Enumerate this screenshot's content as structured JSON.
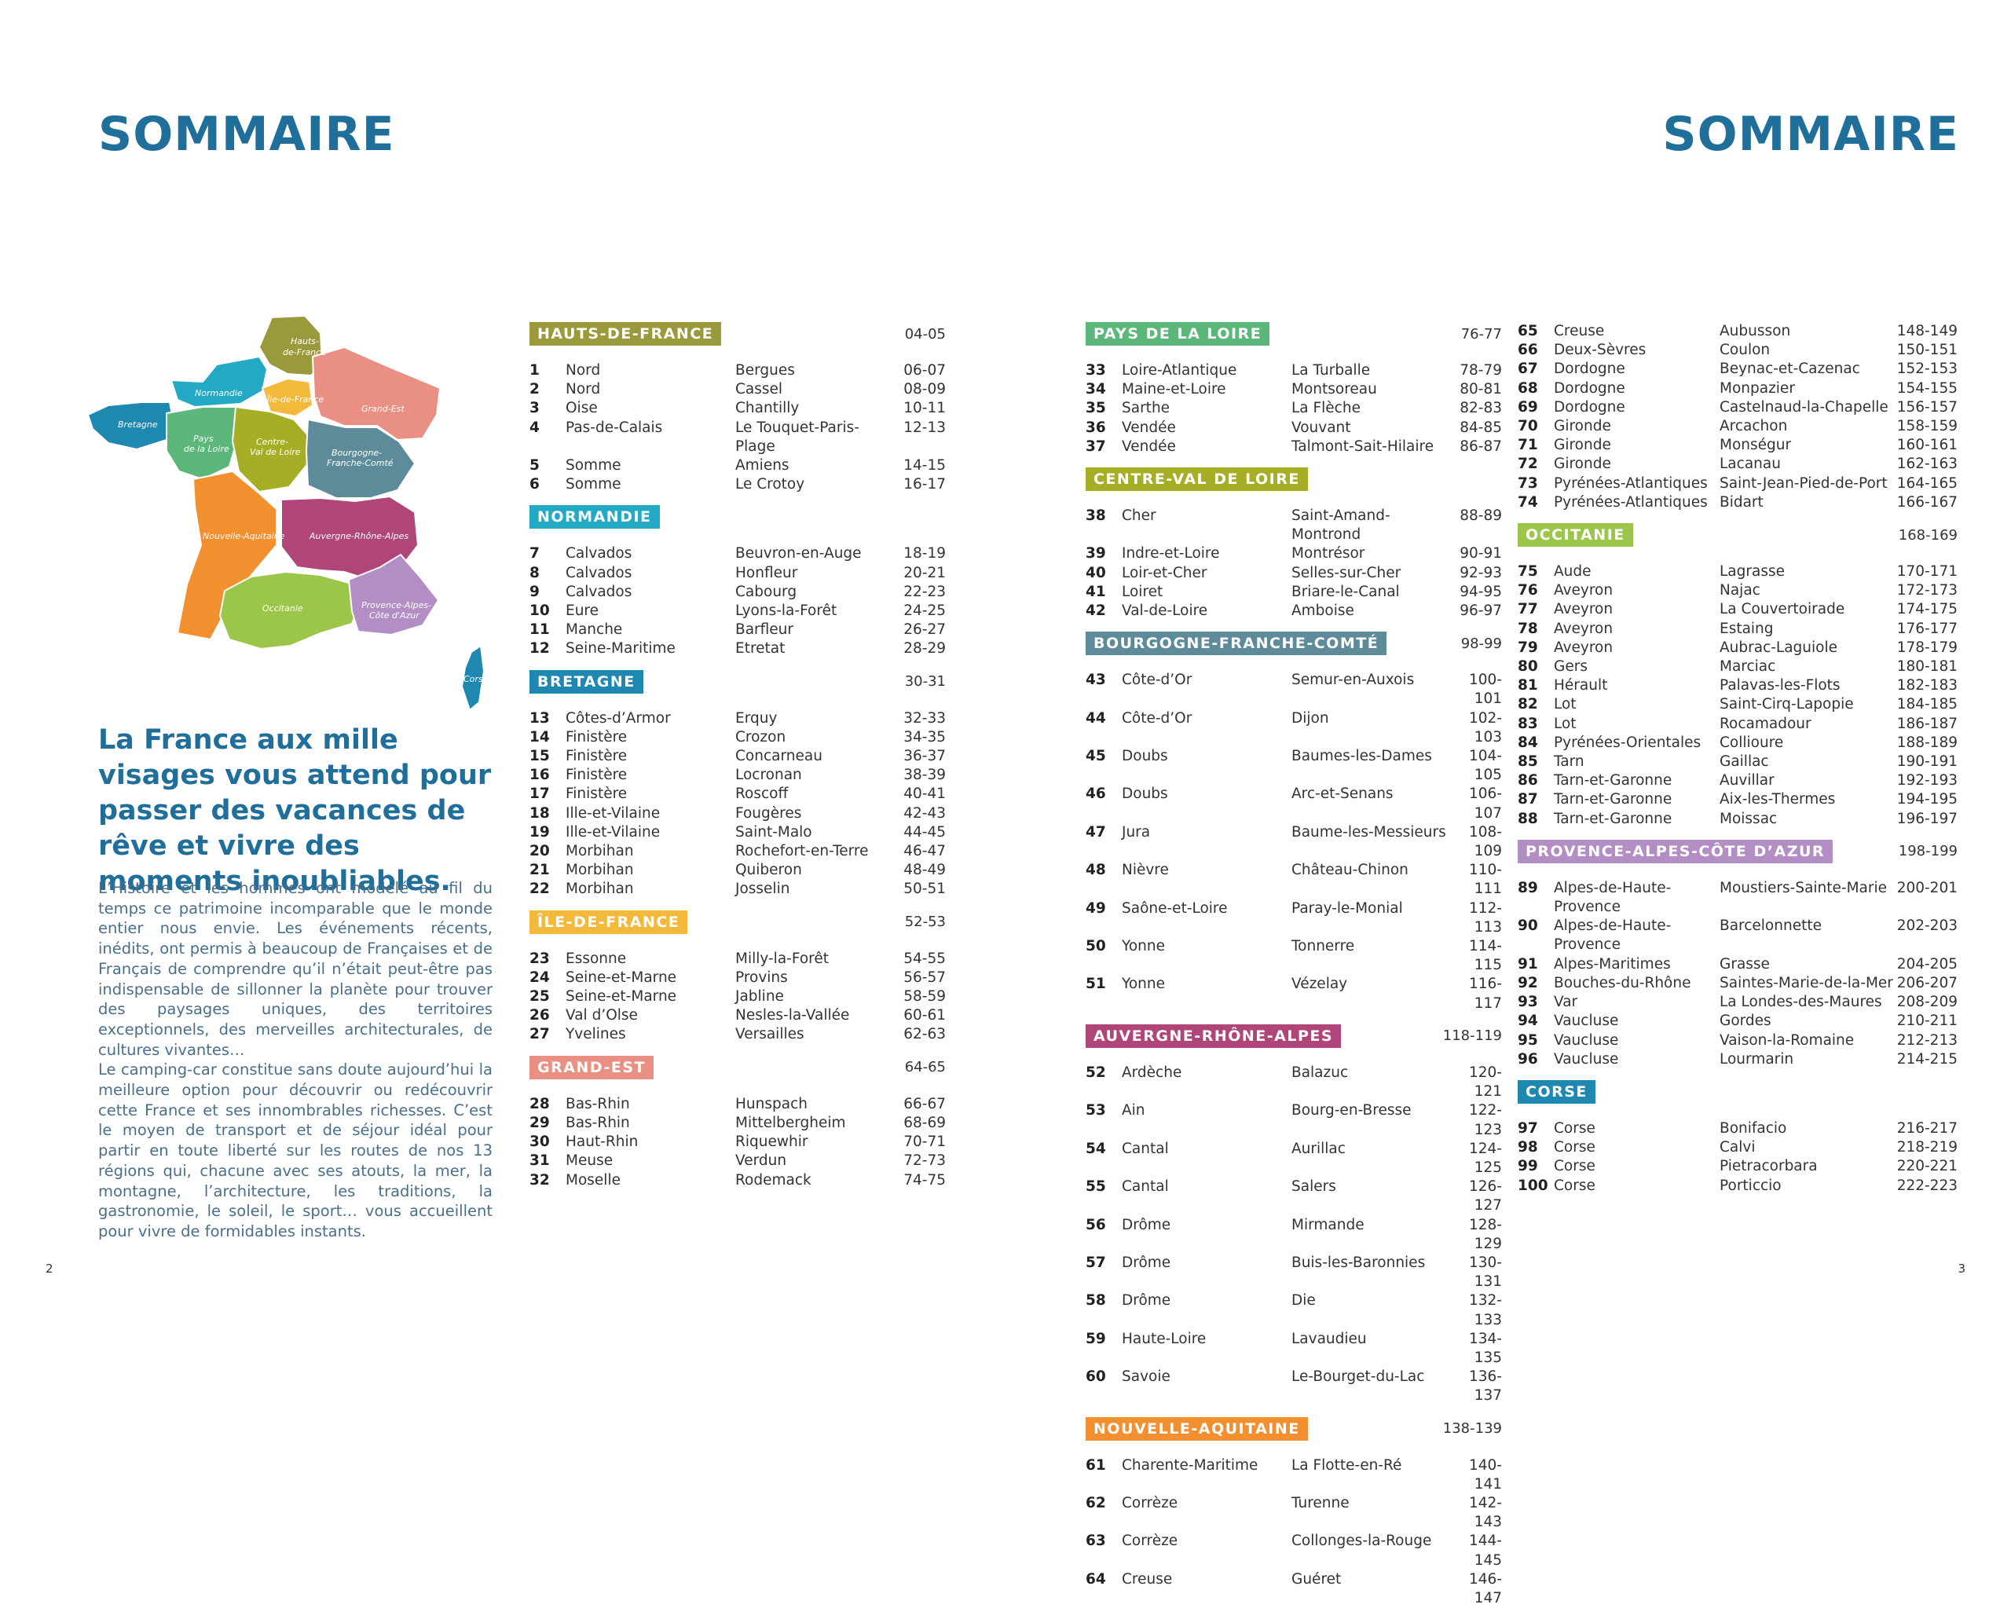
{
  "header": {
    "title_left": "SOMMAIRE",
    "title_right": "SOMMAIRE"
  },
  "map": {
    "regions": [
      {
        "name": "Hauts-de-France",
        "line1": "Hauts-",
        "line2": "de-France",
        "color": "#9a9a3c"
      },
      {
        "name": "Normandie",
        "line1": "Normandie",
        "line2": "",
        "color": "#24a9c4"
      },
      {
        "name": "Île-de-France",
        "line1": "Île-de-France",
        "line2": "",
        "color": "#f2b93b"
      },
      {
        "name": "Grand-Est",
        "line1": "Grand-Est",
        "line2": "",
        "color": "#ea8f83"
      },
      {
        "name": "Bretagne",
        "line1": "Bretagne",
        "line2": "",
        "color": "#1e88b0"
      },
      {
        "name": "Pays de la Loire",
        "line1": "Pays",
        "line2": "de la Loire",
        "color": "#5cb87a"
      },
      {
        "name": "Centre-Val de Loire",
        "line1": "Centre-",
        "line2": "Val de Loire",
        "color": "#a6ae26"
      },
      {
        "name": "Bourgogne-Franche-Comté",
        "line1": "Bourgogne-",
        "line2": "Franche-Comté",
        "color": "#5d8b9a"
      },
      {
        "name": "Nouvelle-Aquitaine",
        "line1": "Nouvelle-Aquitaine",
        "line2": "",
        "color": "#f28f2e"
      },
      {
        "name": "Auvergne-Rhône-Alpes",
        "line1": "Auvergne-Rhône-Alpes",
        "line2": "",
        "color": "#b0457a"
      },
      {
        "name": "Occitanie",
        "line1": "Occitanie",
        "line2": "",
        "color": "#9cc64a"
      },
      {
        "name": "Provence-Alpes-Côte d'Azur",
        "line1": "Provence-Alpes-",
        "line2": "Côte d'Azur",
        "color": "#b28ec4"
      },
      {
        "name": "Corse",
        "line1": "Corse",
        "line2": "",
        "color": "#1e88b0"
      }
    ]
  },
  "headline": "La France aux mille visages vous attend pour passer des vacances de rêve et vivre des moments inoubliables.",
  "intro": {
    "p1": "L’Histoire et les hommes ont modelé au fil du temps ce patrimoine incomparable que le monde entier nous envie. Les événements récents, inédits, ont permis à beaucoup de Françaises et de Français de comprendre qu’il n’était peut-être pas indispensable de sillonner la planète pour trouver des paysages uniques, des territoires exceptionnels, des merveilles architecturales, de cultures vivantes…",
    "p2": "Le camping-car constitue sans doute aujourd’hui la meilleure option pour découvrir ou redécouvrir cette France et ses innombrables richesses. C’est le moyen de transport et de séjour idéal pour partir en toute liberté sur les routes de nos 13 régions qui, chacune avec ses atouts, la mer, la montagne, l’architecture, les traditions, la gastronomie, le soleil, le sport… vous accueillent pour vivre de formidables instants."
  },
  "columns": [
    [
      {
        "title": "HAUTS-DE-FRANCE",
        "pages": "04-05",
        "color": "#9a9a3c",
        "entries": [
          {
            "n": "1",
            "d": "Nord",
            "t": "Bergues",
            "p": "06-07"
          },
          {
            "n": "2",
            "d": "Nord",
            "t": "Cassel",
            "p": "08-09"
          },
          {
            "n": "3",
            "d": "Oise",
            "t": "Chantilly",
            "p": "10-11"
          },
          {
            "n": "4",
            "d": "Pas-de-Calais",
            "t": "Le Touquet-Paris-Plage",
            "p": "12-13"
          },
          {
            "n": "5",
            "d": "Somme",
            "t": "Amiens",
            "p": "14-15"
          },
          {
            "n": "6",
            "d": "Somme",
            "t": "Le Crotoy",
            "p": "16-17"
          }
        ]
      },
      {
        "title": "NORMANDIE",
        "pages": "",
        "color": "#24a9c4",
        "entries": [
          {
            "n": "7",
            "d": "Calvados",
            "t": "Beuvron-en-Auge",
            "p": "18-19"
          },
          {
            "n": "8",
            "d": "Calvados",
            "t": "Honfleur",
            "p": "20-21"
          },
          {
            "n": "9",
            "d": "Calvados",
            "t": "Cabourg",
            "p": "22-23"
          },
          {
            "n": "10",
            "d": "Eure",
            "t": "Lyons-la-Forêt",
            "p": "24-25"
          },
          {
            "n": "11",
            "d": "Manche",
            "t": "Barfleur",
            "p": "26-27"
          },
          {
            "n": "12",
            "d": "Seine-Maritime",
            "t": "Etretat",
            "p": "28-29"
          }
        ]
      },
      {
        "title": "BRETAGNE",
        "pages": "30-31",
        "color": "#1e88b0",
        "entries": [
          {
            "n": "13",
            "d": "Côtes-d’Armor",
            "t": "Erquy",
            "p": "32-33"
          },
          {
            "n": "14",
            "d": "Finistère",
            "t": "Crozon",
            "p": "34-35"
          },
          {
            "n": "15",
            "d": "Finistère",
            "t": "Concarneau",
            "p": "36-37"
          },
          {
            "n": "16",
            "d": "Finistère",
            "t": "Locronan",
            "p": "38-39"
          },
          {
            "n": "17",
            "d": "Finistère",
            "t": "Roscoff",
            "p": "40-41"
          },
          {
            "n": "18",
            "d": "Ille-et-Vilaine",
            "t": "Fougères",
            "p": "42-43"
          },
          {
            "n": "19",
            "d": "Ille-et-Vilaine",
            "t": "Saint-Malo",
            "p": "44-45"
          },
          {
            "n": "20",
            "d": "Morbihan",
            "t": "Rochefort-en-Terre",
            "p": "46-47"
          },
          {
            "n": "21",
            "d": "Morbihan",
            "t": "Quiberon",
            "p": "48-49"
          },
          {
            "n": "22",
            "d": "Morbihan",
            "t": "Josselin",
            "p": "50-51"
          }
        ]
      },
      {
        "title": "ÎLE-DE-FRANCE",
        "pages": "52-53",
        "color": "#f2b93b",
        "entries": [
          {
            "n": "23",
            "d": "Essonne",
            "t": "Milly-la-Forêt",
            "p": "54-55"
          },
          {
            "n": "24",
            "d": "Seine-et-Marne",
            "t": "Provins",
            "p": "56-57"
          },
          {
            "n": "25",
            "d": "Seine-et-Marne",
            "t": "Jabline",
            "p": "58-59"
          },
          {
            "n": "26",
            "d": "Val d’Olse",
            "t": "Nesles-la-Vallée",
            "p": "60-61"
          },
          {
            "n": "27",
            "d": "Yvelines",
            "t": "Versailles",
            "p": "62-63"
          }
        ]
      },
      {
        "title": "GRAND-EST",
        "pages": "64-65",
        "color": "#ea8f83",
        "entries": [
          {
            "n": "28",
            "d": "Bas-Rhin",
            "t": "Hunspach",
            "p": "66-67"
          },
          {
            "n": "29",
            "d": "Bas-Rhin",
            "t": "Mittelbergheim",
            "p": "68-69"
          },
          {
            "n": "30",
            "d": "Haut-Rhin",
            "t": "Riquewhir",
            "p": "70-71"
          },
          {
            "n": "31",
            "d": "Meuse",
            "t": "Verdun",
            "p": "72-73"
          },
          {
            "n": "32",
            "d": "Moselle",
            "t": "Rodemack",
            "p": "74-75"
          }
        ]
      }
    ],
    [
      {
        "title": "PAYS DE LA LOIRE",
        "pages": "76-77",
        "color": "#5cb87a",
        "entries": [
          {
            "n": "33",
            "d": "Loire-Atlantique",
            "t": "La Turballe",
            "p": "78-79"
          },
          {
            "n": "34",
            "d": "Maine-et-Loire",
            "t": "Montsoreau",
            "p": "80-81"
          },
          {
            "n": "35",
            "d": "Sarthe",
            "t": "La Flèche",
            "p": "82-83"
          },
          {
            "n": "36",
            "d": "Vendée",
            "t": "Vouvant",
            "p": "84-85"
          },
          {
            "n": "37",
            "d": "Vendée",
            "t": "Talmont-Sait-Hilaire",
            "p": "86-87"
          }
        ]
      },
      {
        "title": "CENTRE-VAL DE LOIRE",
        "pages": "",
        "color": "#a6ae26",
        "entries": [
          {
            "n": "38",
            "d": "Cher",
            "t": "Saint-Amand-Montrond",
            "p": "88-89"
          },
          {
            "n": "39",
            "d": "Indre-et-Loire",
            "t": "Montrésor",
            "p": "90-91"
          },
          {
            "n": "40",
            "d": "Loir-et-Cher",
            "t": "Selles-sur-Cher",
            "p": "92-93"
          },
          {
            "n": "41",
            "d": "Loiret",
            "t": "Briare-le-Canal",
            "p": "94-95"
          },
          {
            "n": "42",
            "d": "Val-de-Loire",
            "t": "Amboise",
            "p": "96-97"
          }
        ]
      },
      {
        "title": "BOURGOGNE-FRANCHE-COMTÉ",
        "pages": "98-99",
        "color": "#5d8b9a",
        "entries": [
          {
            "n": "43",
            "d": "Côte-d’Or",
            "t": "Semur-en-Auxois",
            "p": "100-101"
          },
          {
            "n": "44",
            "d": "Côte-d’Or",
            "t": "Dijon",
            "p": "102-103"
          },
          {
            "n": "45",
            "d": "Doubs",
            "t": "Baumes-les-Dames",
            "p": "104-105"
          },
          {
            "n": "46",
            "d": "Doubs",
            "t": "Arc-et-Senans",
            "p": "106-107"
          },
          {
            "n": "47",
            "d": "Jura",
            "t": "Baume-les-Messieurs",
            "p": "108-109"
          },
          {
            "n": "48",
            "d": "Nièvre",
            "t": "Château-Chinon",
            "p": "110-111"
          },
          {
            "n": "49",
            "d": "Saône-et-Loire",
            "t": "Paray-le-Monial",
            "p": "112-113"
          },
          {
            "n": "50",
            "d": "Yonne",
            "t": "Tonnerre",
            "p": "114-115"
          },
          {
            "n": "51",
            "d": "Yonne",
            "t": "Vézelay",
            "p": "116-117"
          }
        ]
      },
      {
        "title": "AUVERGNE-RHÔNE-ALPES",
        "pages": "118-119",
        "color": "#b0457a",
        "entries": [
          {
            "n": "52",
            "d": "Ardèche",
            "t": "Balazuc",
            "p": "120-121"
          },
          {
            "n": "53",
            "d": "Ain",
            "t": "Bourg-en-Bresse",
            "p": "122-123"
          },
          {
            "n": "54",
            "d": "Cantal",
            "t": "Aurillac",
            "p": "124-125"
          },
          {
            "n": "55",
            "d": "Cantal",
            "t": "Salers",
            "p": "126-127"
          },
          {
            "n": "56",
            "d": "Drôme",
            "t": "Mirmande",
            "p": "128-129"
          },
          {
            "n": "57",
            "d": "Drôme",
            "t": "Buis-les-Baronnies",
            "p": "130-131"
          },
          {
            "n": "58",
            "d": "Drôme",
            "t": "Die",
            "p": "132-133"
          },
          {
            "n": "59",
            "d": "Haute-Loire",
            "t": "Lavaudieu",
            "p": "134-135"
          },
          {
            "n": "60",
            "d": "Savoie",
            "t": "Le-Bourget-du-Lac",
            "p": "136-137"
          }
        ]
      },
      {
        "title": "NOUVELLE-AQUITAINE",
        "pages": "138-139",
        "color": "#f28f2e",
        "entries": [
          {
            "n": "61",
            "d": "Charente-Maritime",
            "t": "La Flotte-en-Ré",
            "p": "140-141"
          },
          {
            "n": "62",
            "d": "Corrèze",
            "t": "Turenne",
            "p": "142-143"
          },
          {
            "n": "63",
            "d": "Corrèze",
            "t": "Collonges-la-Rouge",
            "p": "144-145"
          },
          {
            "n": "64",
            "d": "Creuse",
            "t": "Guéret",
            "p": "146-147"
          }
        ]
      }
    ],
    [
      {
        "title": "",
        "pages": "",
        "color": "",
        "entries": [
          {
            "n": "65",
            "d": "Creuse",
            "t": "Aubusson",
            "p": "148-149"
          },
          {
            "n": "66",
            "d": "Deux-Sèvres",
            "t": "Coulon",
            "p": "150-151"
          },
          {
            "n": "67",
            "d": "Dordogne",
            "t": "Beynac-et-Cazenac",
            "p": "152-153"
          },
          {
            "n": "68",
            "d": "Dordogne",
            "t": "Monpazier",
            "p": "154-155"
          },
          {
            "n": "69",
            "d": "Dordogne",
            "t": "Castelnaud-la-Chapelle",
            "p": "156-157"
          },
          {
            "n": "70",
            "d": "Gironde",
            "t": "Arcachon",
            "p": "158-159"
          },
          {
            "n": "71",
            "d": "Gironde",
            "t": "Monségur",
            "p": "160-161"
          },
          {
            "n": "72",
            "d": "Gironde",
            "t": "Lacanau",
            "p": "162-163"
          },
          {
            "n": "73",
            "d": "Pyrénées-Atlantiques",
            "t": "Saint-Jean-Pied-de-Port",
            "p": "164-165"
          },
          {
            "n": "74",
            "d": "Pyrénées-Atlantiques",
            "t": "Bidart",
            "p": "166-167"
          }
        ]
      },
      {
        "title": "OCCITANIE",
        "pages": "168-169",
        "color": "#9cc64a",
        "entries": [
          {
            "n": "75",
            "d": "Aude",
            "t": "Lagrasse",
            "p": "170-171"
          },
          {
            "n": "76",
            "d": "Aveyron",
            "t": "Najac",
            "p": "172-173"
          },
          {
            "n": "77",
            "d": "Aveyron",
            "t": "La Couvertoirade",
            "p": "174-175"
          },
          {
            "n": "78",
            "d": "Aveyron",
            "t": "Estaing",
            "p": "176-177"
          },
          {
            "n": "79",
            "d": "Aveyron",
            "t": "Aubrac-Laguiole",
            "p": "178-179"
          },
          {
            "n": "80",
            "d": "Gers",
            "t": "Marciac",
            "p": "180-181"
          },
          {
            "n": "81",
            "d": "Hérault",
            "t": "Palavas-les-Flots",
            "p": "182-183"
          },
          {
            "n": "82",
            "d": "Lot",
            "t": "Saint-Cirq-Lapopie",
            "p": "184-185"
          },
          {
            "n": "83",
            "d": "Lot",
            "t": "Rocamadour",
            "p": "186-187"
          },
          {
            "n": "84",
            "d": "Pyrénées-Orientales",
            "t": "Collioure",
            "p": "188-189"
          },
          {
            "n": "85",
            "d": "Tarn",
            "t": "Gaillac",
            "p": "190-191"
          },
          {
            "n": "86",
            "d": "Tarn-et-Garonne",
            "t": "Auvillar",
            "p": "192-193"
          },
          {
            "n": "87",
            "d": "Tarn-et-Garonne",
            "t": "Aix-les-Thermes",
            "p": "194-195"
          },
          {
            "n": "88",
            "d": "Tarn-et-Garonne",
            "t": "Moissac",
            "p": "196-197"
          }
        ]
      },
      {
        "title": "PROVENCE-ALPES-CÔTE D’AZUR",
        "pages": "198-199",
        "color": "#b28ec4",
        "entries": [
          {
            "n": "89",
            "d": "Alpes-de-Haute-Provence",
            "t": "Moustiers-Sainte-Marie",
            "p": "200-201"
          },
          {
            "n": "90",
            "d": "Alpes-de-Haute-Provence",
            "t": "Barcelonnette",
            "p": "202-203"
          },
          {
            "n": "91",
            "d": "Alpes-Maritimes",
            "t": "Grasse",
            "p": "204-205"
          },
          {
            "n": "92",
            "d": "Bouches-du-Rhône",
            "t": "Saintes-Marie-de-la-Mer",
            "p": "206-207"
          },
          {
            "n": "93",
            "d": "Var",
            "t": "La Londes-des-Maures",
            "p": "208-209"
          },
          {
            "n": "94",
            "d": "Vaucluse",
            "t": "Gordes",
            "p": "210-211"
          },
          {
            "n": "95",
            "d": "Vaucluse",
            "t": "Vaison-la-Romaine",
            "p": "212-213"
          },
          {
            "n": "96",
            "d": "Vaucluse",
            "t": "Lourmarin",
            "p": "214-215"
          }
        ]
      },
      {
        "title": "CORSE",
        "pages": "",
        "color": "#1e88b0",
        "entries": [
          {
            "n": "97",
            "d": "Corse",
            "t": "Bonifacio",
            "p": "216-217"
          },
          {
            "n": "98",
            "d": "Corse",
            "t": "Calvi",
            "p": "218-219"
          },
          {
            "n": "99",
            "d": "Corse",
            "t": "Pietracorbara",
            "p": "220-221"
          },
          {
            "n": "100",
            "d": "Corse",
            "t": "Porticcio",
            "p": "222-223"
          }
        ]
      }
    ]
  ],
  "footer": {
    "page_left": "2",
    "page_right": "3"
  }
}
